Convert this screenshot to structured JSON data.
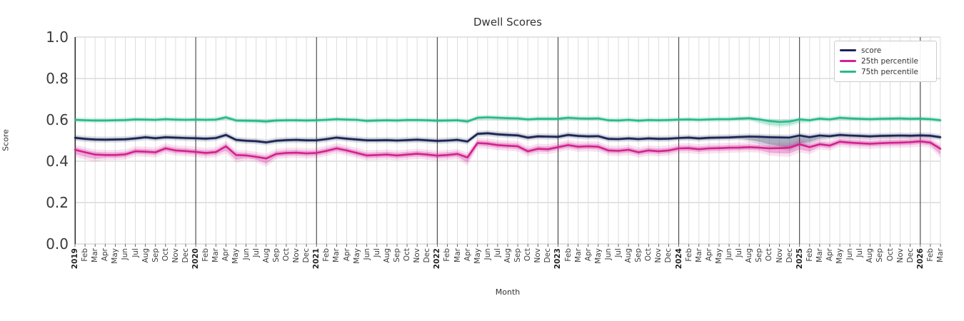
{
  "chart_data": {
    "type": "line",
    "title": "Dwell Scores",
    "xlabel": "Month",
    "ylabel": "Score",
    "ylim": [
      0.0,
      1.0
    ],
    "yticks": [
      "0.0",
      "0.2",
      "0.4",
      "0.6",
      "0.8",
      "1.0"
    ],
    "grid": true,
    "legend_position": "upper right",
    "x_labels": [
      "2019",
      "Feb",
      "Mar",
      "Apr",
      "May",
      "Jun",
      "Jul",
      "Aug",
      "Sep",
      "Oct",
      "Nov",
      "Dec",
      "2020",
      "Feb",
      "Mar",
      "Apr",
      "May",
      "Jun",
      "Jul",
      "Aug",
      "Sep",
      "Oct",
      "Nov",
      "Dec",
      "2021",
      "Feb",
      "Mar",
      "Apr",
      "May",
      "Jun",
      "Jul",
      "Aug",
      "Sep",
      "Oct",
      "Nov",
      "Dec",
      "2022",
      "Feb",
      "Mar",
      "Apr",
      "May",
      "Jun",
      "Jul",
      "Aug",
      "Sep",
      "Oct",
      "Nov",
      "Dec",
      "2023",
      "Feb",
      "Mar",
      "Apr",
      "May",
      "Jun",
      "Jul",
      "Aug",
      "Sep",
      "Oct",
      "Nov",
      "Dec",
      "2024",
      "Feb",
      "Mar",
      "Apr",
      "May",
      "Jun",
      "Jul",
      "Aug",
      "Sep",
      "Oct",
      "Nov",
      "Dec",
      "2025",
      "Feb",
      "Mar",
      "Apr",
      "May",
      "Jun",
      "Jul",
      "Aug",
      "Sep",
      "Oct",
      "Nov",
      "Dec",
      "2026",
      "Feb",
      "Mar"
    ],
    "year_tick_indices": [
      0,
      12,
      24,
      36,
      48,
      60,
      72,
      84
    ],
    "series": [
      {
        "name": "score",
        "color": "#1b2553",
        "band_halfwidth": 0.008,
        "band_extra_lower": {
          "67": 0.008,
          "68": 0.016,
          "69": 0.026,
          "70": 0.034,
          "71": 0.04,
          "72": 0.03,
          "73": 0.015,
          "74": 0.006
        },
        "values": [
          0.513,
          0.508,
          0.505,
          0.504,
          0.505,
          0.506,
          0.51,
          0.516,
          0.511,
          0.516,
          0.514,
          0.512,
          0.511,
          0.509,
          0.512,
          0.527,
          0.503,
          0.499,
          0.497,
          0.491,
          0.499,
          0.502,
          0.503,
          0.501,
          0.501,
          0.507,
          0.514,
          0.509,
          0.505,
          0.501,
          0.501,
          0.502,
          0.5,
          0.502,
          0.504,
          0.501,
          0.498,
          0.5,
          0.503,
          0.495,
          0.532,
          0.535,
          0.53,
          0.527,
          0.525,
          0.514,
          0.52,
          0.519,
          0.518,
          0.527,
          0.522,
          0.52,
          0.521,
          0.508,
          0.507,
          0.51,
          0.507,
          0.51,
          0.508,
          0.509,
          0.512,
          0.514,
          0.51,
          0.513,
          0.514,
          0.515,
          0.517,
          0.519,
          0.518,
          0.516,
          0.515,
          0.514,
          0.524,
          0.516,
          0.524,
          0.521,
          0.527,
          0.524,
          0.522,
          0.52,
          0.522,
          0.523,
          0.524,
          0.523,
          0.525,
          0.523,
          0.516
        ]
      },
      {
        "name": "25th percentile",
        "color": "#d2218f",
        "band_halfwidth": 0.013,
        "band_extra_lower": {
          "0": 0.008,
          "1": 0.008,
          "2": 0.008,
          "15": 0.008,
          "16": 0.01,
          "19": 0.012,
          "39": 0.012,
          "69": 0.008,
          "70": 0.012,
          "71": 0.015,
          "72": 0.012,
          "73": 0.008,
          "86": 0.015
        },
        "values": [
          0.455,
          0.443,
          0.432,
          0.43,
          0.43,
          0.433,
          0.448,
          0.446,
          0.443,
          0.462,
          0.452,
          0.449,
          0.445,
          0.44,
          0.444,
          0.472,
          0.43,
          0.428,
          0.421,
          0.413,
          0.435,
          0.44,
          0.441,
          0.438,
          0.44,
          0.45,
          0.462,
          0.452,
          0.44,
          0.428,
          0.43,
          0.432,
          0.428,
          0.432,
          0.436,
          0.432,
          0.427,
          0.43,
          0.435,
          0.418,
          0.488,
          0.485,
          0.478,
          0.475,
          0.472,
          0.448,
          0.46,
          0.458,
          0.468,
          0.478,
          0.47,
          0.472,
          0.47,
          0.452,
          0.45,
          0.455,
          0.443,
          0.452,
          0.448,
          0.452,
          0.462,
          0.463,
          0.458,
          0.462,
          0.463,
          0.465,
          0.466,
          0.468,
          0.466,
          0.462,
          0.463,
          0.465,
          0.482,
          0.468,
          0.482,
          0.476,
          0.494,
          0.49,
          0.487,
          0.484,
          0.487,
          0.489,
          0.49,
          0.492,
          0.496,
          0.49,
          0.46
        ]
      },
      {
        "name": "75th percentile",
        "color": "#29b98c",
        "band_halfwidth": 0.007,
        "band_extra_lower": {
          "68": 0.006,
          "69": 0.01,
          "70": 0.012,
          "71": 0.01,
          "72": 0.006
        },
        "values": [
          0.6,
          0.598,
          0.597,
          0.597,
          0.598,
          0.599,
          0.602,
          0.601,
          0.6,
          0.603,
          0.601,
          0.6,
          0.601,
          0.6,
          0.601,
          0.612,
          0.597,
          0.596,
          0.595,
          0.592,
          0.597,
          0.598,
          0.598,
          0.597,
          0.598,
          0.6,
          0.603,
          0.601,
          0.6,
          0.595,
          0.597,
          0.598,
          0.597,
          0.599,
          0.599,
          0.598,
          0.596,
          0.597,
          0.598,
          0.592,
          0.61,
          0.612,
          0.61,
          0.608,
          0.607,
          0.602,
          0.605,
          0.605,
          0.605,
          0.61,
          0.607,
          0.606,
          0.607,
          0.598,
          0.597,
          0.6,
          0.596,
          0.599,
          0.598,
          0.599,
          0.601,
          0.602,
          0.6,
          0.602,
          0.603,
          0.603,
          0.606,
          0.608,
          0.602,
          0.594,
          0.59,
          0.592,
          0.602,
          0.598,
          0.606,
          0.602,
          0.61,
          0.607,
          0.605,
          0.603,
          0.605,
          0.606,
          0.607,
          0.605,
          0.606,
          0.603,
          0.598
        ]
      }
    ],
    "style": {
      "grid_h_color": "#c9c9c9",
      "grid_v_color": "#dddddd",
      "year_line_color": "#2f2f2f",
      "spine_color": "#2f2f2f",
      "tick_color": "#444444"
    }
  }
}
